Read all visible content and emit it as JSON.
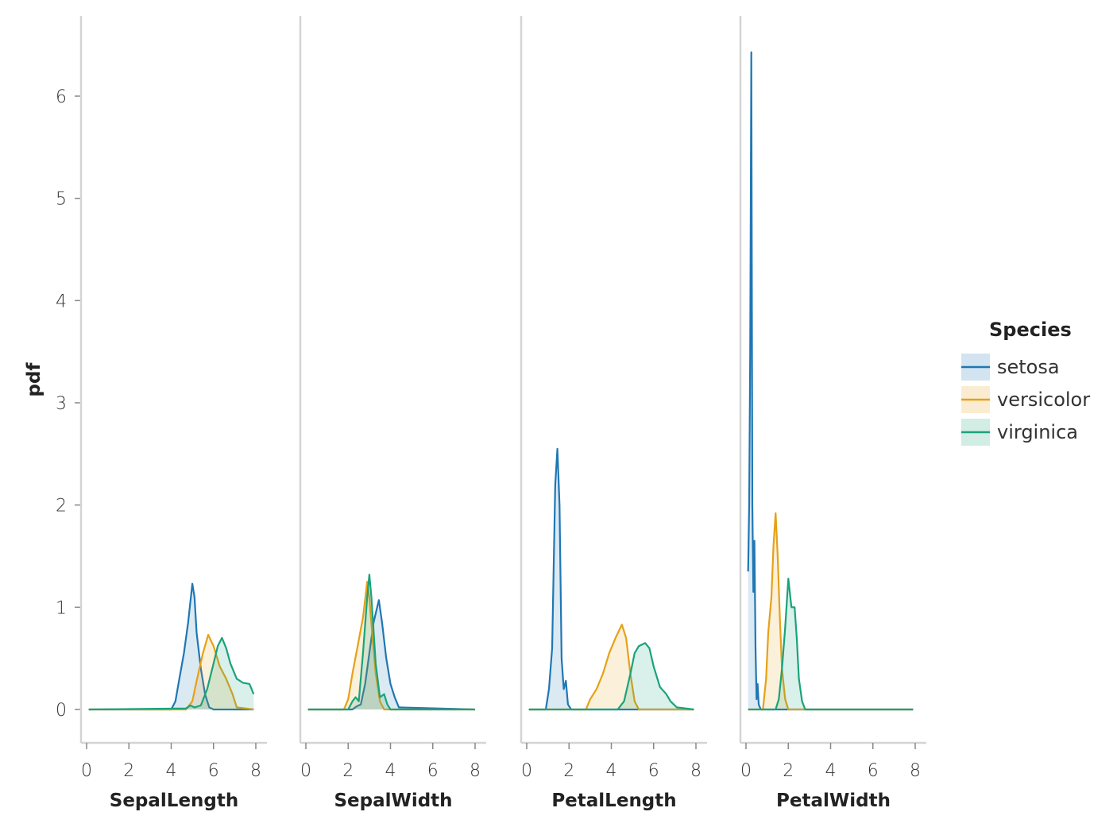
{
  "chart_data": {
    "type": "area",
    "ylabel": "pdf",
    "ylim": [
      -0.3,
      6.8
    ],
    "yticks": [
      0,
      1,
      2,
      3,
      4,
      5,
      6
    ],
    "xlim": [
      -0.2,
      8.2
    ],
    "xticks": [
      0,
      2,
      4,
      6,
      8
    ],
    "grid": false,
    "legend": {
      "title": "Species",
      "placement": "right",
      "entries": [
        "setosa",
        "versicolor",
        "virginica"
      ]
    },
    "series_colors": {
      "setosa": "#1f77b4",
      "versicolor": "#e6a117",
      "virginica": "#1aa37a"
    },
    "panels": [
      {
        "xlabel": "SepalLength",
        "series": [
          {
            "name": "setosa",
            "points": [
              [
                0.1,
                0
              ],
              [
                4.0,
                0
              ],
              [
                4.2,
                0.08
              ],
              [
                4.4,
                0.32
              ],
              [
                4.6,
                0.55
              ],
              [
                4.8,
                0.85
              ],
              [
                5.0,
                1.23
              ],
              [
                5.1,
                1.1
              ],
              [
                5.2,
                0.75
              ],
              [
                5.4,
                0.4
              ],
              [
                5.6,
                0.15
              ],
              [
                5.8,
                0.02
              ],
              [
                6.0,
                0
              ],
              [
                7.9,
                0
              ]
            ]
          },
          {
            "name": "versicolor",
            "points": [
              [
                0.1,
                0
              ],
              [
                4.7,
                0
              ],
              [
                5.0,
                0.08
              ],
              [
                5.2,
                0.28
              ],
              [
                5.5,
                0.55
              ],
              [
                5.75,
                0.73
              ],
              [
                6.0,
                0.62
              ],
              [
                6.3,
                0.42
              ],
              [
                6.6,
                0.3
              ],
              [
                6.9,
                0.15
              ],
              [
                7.1,
                0.02
              ],
              [
                7.9,
                0
              ]
            ]
          },
          {
            "name": "virginica",
            "points": [
              [
                0.1,
                0
              ],
              [
                4.7,
                0.01
              ],
              [
                4.9,
                0.04
              ],
              [
                5.1,
                0.02
              ],
              [
                5.4,
                0.04
              ],
              [
                5.7,
                0.2
              ],
              [
                6.0,
                0.45
              ],
              [
                6.2,
                0.62
              ],
              [
                6.4,
                0.7
              ],
              [
                6.6,
                0.6
              ],
              [
                6.8,
                0.45
              ],
              [
                7.1,
                0.3
              ],
              [
                7.4,
                0.26
              ],
              [
                7.7,
                0.25
              ],
              [
                7.9,
                0.15
              ]
            ]
          }
        ]
      },
      {
        "xlabel": "SepalWidth",
        "series": [
          {
            "name": "setosa",
            "points": [
              [
                0.1,
                0
              ],
              [
                2.2,
                0
              ],
              [
                2.4,
                0.03
              ],
              [
                2.6,
                0.05
              ],
              [
                2.8,
                0.25
              ],
              [
                3.0,
                0.55
              ],
              [
                3.2,
                0.85
              ],
              [
                3.45,
                1.07
              ],
              [
                3.6,
                0.85
              ],
              [
                3.8,
                0.5
              ],
              [
                4.0,
                0.25
              ],
              [
                4.2,
                0.12
              ],
              [
                4.4,
                0.02
              ],
              [
                8.0,
                0
              ]
            ]
          },
          {
            "name": "versicolor",
            "points": [
              [
                0.1,
                0
              ],
              [
                1.8,
                0
              ],
              [
                2.0,
                0.1
              ],
              [
                2.2,
                0.35
              ],
              [
                2.45,
                0.62
              ],
              [
                2.7,
                0.9
              ],
              [
                2.9,
                1.25
              ],
              [
                3.0,
                1.1
              ],
              [
                3.15,
                0.7
              ],
              [
                3.3,
                0.35
              ],
              [
                3.5,
                0.08
              ],
              [
                3.7,
                0
              ],
              [
                8.0,
                0
              ]
            ]
          },
          {
            "name": "virginica",
            "points": [
              [
                0.1,
                0
              ],
              [
                2.0,
                0
              ],
              [
                2.2,
                0.08
              ],
              [
                2.35,
                0.12
              ],
              [
                2.5,
                0.08
              ],
              [
                2.7,
                0.55
              ],
              [
                2.9,
                1.1
              ],
              [
                3.0,
                1.32
              ],
              [
                3.1,
                1.1
              ],
              [
                3.3,
                0.45
              ],
              [
                3.5,
                0.12
              ],
              [
                3.7,
                0.15
              ],
              [
                3.85,
                0.05
              ],
              [
                4.0,
                0
              ],
              [
                8.0,
                0
              ]
            ]
          }
        ]
      },
      {
        "xlabel": "PetalLength",
        "series": [
          {
            "name": "setosa",
            "points": [
              [
                0.1,
                0
              ],
              [
                0.9,
                0
              ],
              [
                1.05,
                0.2
              ],
              [
                1.2,
                0.6
              ],
              [
                1.35,
                2.2
              ],
              [
                1.45,
                2.55
              ],
              [
                1.55,
                2.0
              ],
              [
                1.65,
                0.5
              ],
              [
                1.75,
                0.2
              ],
              [
                1.85,
                0.28
              ],
              [
                1.95,
                0.05
              ],
              [
                2.1,
                0
              ],
              [
                7.9,
                0
              ]
            ]
          },
          {
            "name": "versicolor",
            "points": [
              [
                0.1,
                0
              ],
              [
                2.8,
                0
              ],
              [
                3.0,
                0.1
              ],
              [
                3.3,
                0.2
              ],
              [
                3.6,
                0.35
              ],
              [
                3.9,
                0.55
              ],
              [
                4.2,
                0.7
              ],
              [
                4.5,
                0.83
              ],
              [
                4.7,
                0.7
              ],
              [
                4.9,
                0.35
              ],
              [
                5.1,
                0.08
              ],
              [
                5.3,
                0
              ],
              [
                7.9,
                0
              ]
            ]
          },
          {
            "name": "virginica",
            "points": [
              [
                0.1,
                0
              ],
              [
                4.3,
                0
              ],
              [
                4.6,
                0.08
              ],
              [
                4.9,
                0.35
              ],
              [
                5.1,
                0.55
              ],
              [
                5.3,
                0.62
              ],
              [
                5.6,
                0.65
              ],
              [
                5.8,
                0.6
              ],
              [
                6.0,
                0.42
              ],
              [
                6.3,
                0.22
              ],
              [
                6.6,
                0.15
              ],
              [
                6.8,
                0.08
              ],
              [
                7.1,
                0.02
              ],
              [
                7.9,
                0
              ]
            ]
          }
        ]
      },
      {
        "xlabel": "PetalWidth",
        "series": [
          {
            "name": "setosa",
            "points": [
              [
                0.1,
                1.35
              ],
              [
                0.15,
                2.0
              ],
              [
                0.2,
                3.5
              ],
              [
                0.25,
                6.43
              ],
              [
                0.3,
                2.0
              ],
              [
                0.35,
                1.15
              ],
              [
                0.4,
                1.65
              ],
              [
                0.45,
                0.6
              ],
              [
                0.5,
                0.1
              ],
              [
                0.55,
                0.25
              ],
              [
                0.6,
                0.05
              ],
              [
                0.7,
                0
              ],
              [
                7.9,
                0
              ]
            ]
          },
          {
            "name": "versicolor",
            "points": [
              [
                0.1,
                0
              ],
              [
                0.8,
                0
              ],
              [
                0.95,
                0.3
              ],
              [
                1.05,
                0.75
              ],
              [
                1.2,
                1.1
              ],
              [
                1.3,
                1.6
              ],
              [
                1.4,
                1.92
              ],
              [
                1.5,
                1.5
              ],
              [
                1.6,
                0.9
              ],
              [
                1.7,
                0.4
              ],
              [
                1.85,
                0.1
              ],
              [
                2.0,
                0
              ],
              [
                7.9,
                0
              ]
            ]
          },
          {
            "name": "virginica",
            "points": [
              [
                0.1,
                0
              ],
              [
                1.4,
                0
              ],
              [
                1.55,
                0.1
              ],
              [
                1.7,
                0.4
              ],
              [
                1.85,
                0.8
              ],
              [
                2.0,
                1.28
              ],
              [
                2.15,
                1.0
              ],
              [
                2.3,
                1.0
              ],
              [
                2.4,
                0.7
              ],
              [
                2.5,
                0.3
              ],
              [
                2.65,
                0.08
              ],
              [
                2.8,
                0
              ],
              [
                7.9,
                0
              ]
            ]
          }
        ]
      }
    ]
  }
}
